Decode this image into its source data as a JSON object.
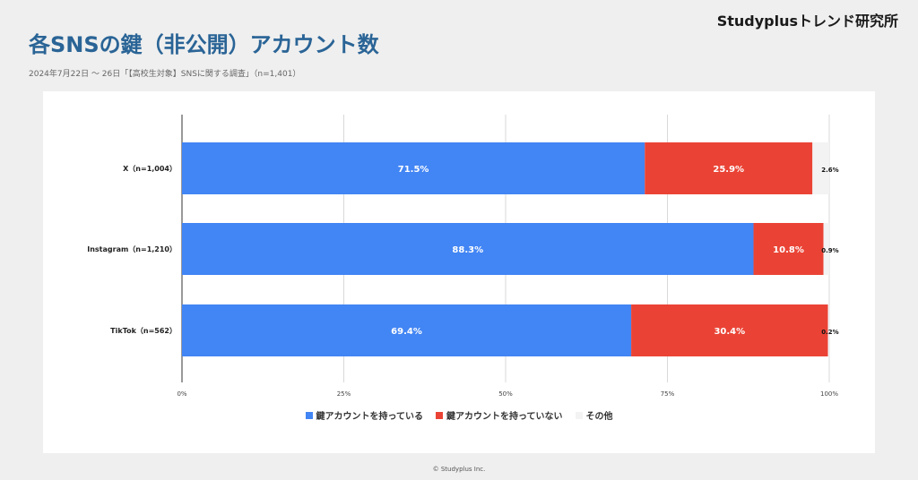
{
  "header": {
    "brand": "Studyplusトレンド研究所",
    "title": "各SNSの鍵（非公開）アカウント数",
    "subtitle": "2024年7月22日 〜 26日「【高校生対象】SNSに関する調査」（n=1,401）"
  },
  "footer": {
    "copyright": "© Studyplus Inc."
  },
  "chart_data": {
    "type": "bar",
    "orientation": "horizontal",
    "stacked": true,
    "categories": [
      "X（n=1,004）",
      "Instagram（n=1,210）",
      "TikTok（n=562）"
    ],
    "series": [
      {
        "name": "鍵アカウントを持っている",
        "values": [
          71.5,
          88.3,
          69.4
        ],
        "color": "#4285f4",
        "labels": [
          "71.5%",
          "88.3%",
          "69.4%"
        ]
      },
      {
        "name": "鍵アカウントを持っていない",
        "values": [
          25.9,
          10.8,
          30.4
        ],
        "color": "#ea4335",
        "labels": [
          "25.9%",
          "10.8%",
          "30.4%"
        ]
      },
      {
        "name": "その他",
        "values": [
          2.6,
          0.9,
          0.2
        ],
        "color": "#f3f3f3",
        "labels": [
          "2.6%",
          "0.9%",
          "0.2%"
        ]
      }
    ],
    "xlim": [
      0,
      100
    ],
    "xticks": [
      0,
      25,
      50,
      75,
      100
    ],
    "xtick_labels": [
      "0%",
      "25%",
      "50%",
      "75%",
      "100%"
    ],
    "grid": true,
    "legend_position": "bottom"
  }
}
